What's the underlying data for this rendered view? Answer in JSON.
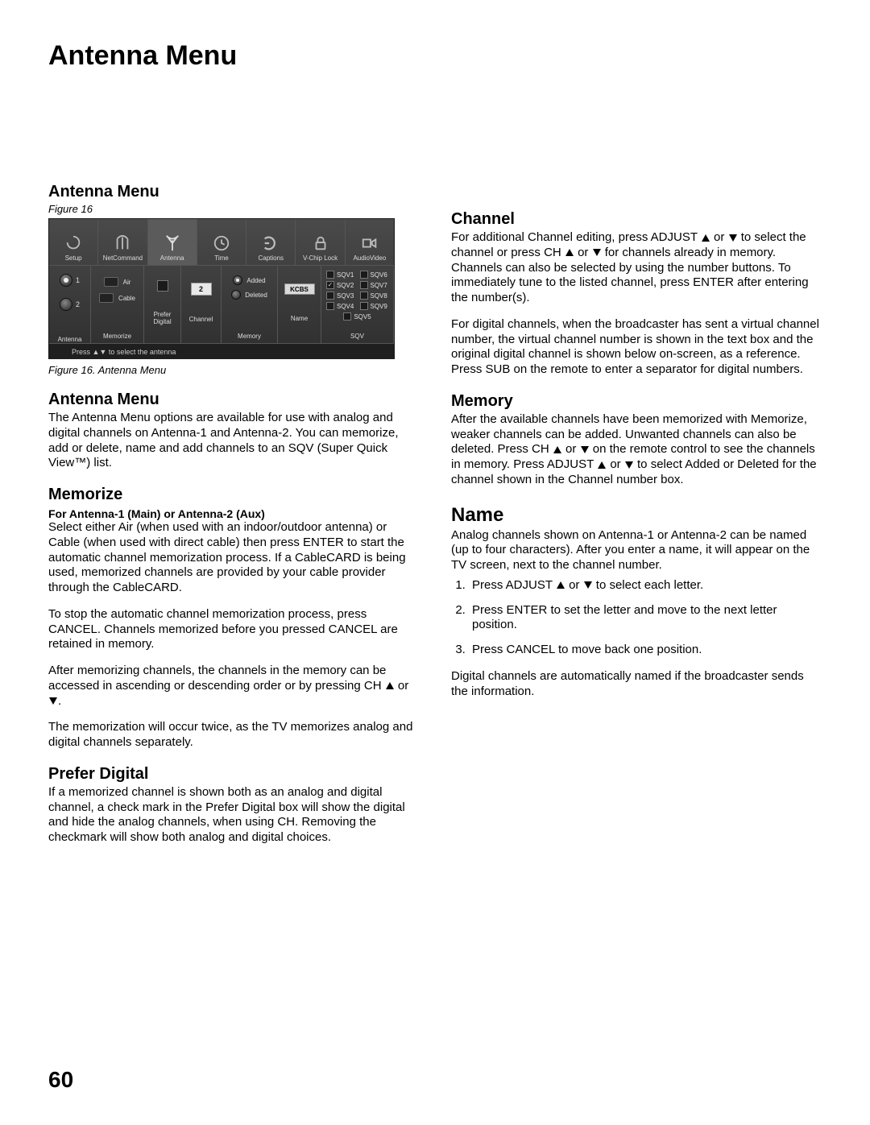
{
  "page": {
    "title": "Antenna Menu",
    "number": "60"
  },
  "left": {
    "h1": "Antenna Menu",
    "fig_ref": "Figure 16",
    "fig_caption": "Figure 16. Antenna Menu",
    "h2": "Antenna Menu",
    "p2": "The Antenna Menu options are available for use with analog and digital channels on Antenna-1 and Antenna-2.  You can memorize, add or delete, name and add channels to an SQV (Super Quick View™) list.",
    "h3": "Memorize",
    "sub3": "For Antenna-1 (Main) or Antenna-2 (Aux)",
    "p3a": "Select either Air (when used with an indoor/outdoor antenna) or Cable (when used with direct cable) then press ENTER to start the automatic channel memorization process.  If a CableCARD is being used, memorized channels are provided by your cable provider through the CableCARD.",
    "p3b": "To stop the automatic channel memorization process, press CANCEL.  Channels memorized before you pressed CANCEL are retained in memory.",
    "p3c_a": "After memorizing channels, the channels in the memory can be accessed in ascending or descending order or by pressing CH ",
    "p3c_b": " or ",
    "p3c_c": ".",
    "p3d": "The memorization will occur twice, as the TV memorizes analog and digital channels separately.",
    "h4": "Prefer Digital",
    "p4": "If a memorized channel is shown both as an analog and digital channel, a check mark in the Prefer Digital box will show the digital and hide the analog channels, when using CH.  Removing the checkmark will show both analog and digital choices."
  },
  "right": {
    "h1": "Channel",
    "p1a_a": "For additional Channel editing, press ADJUST ",
    "p1a_b": " or ",
    "p1a_c": " to select the channel or press CH ",
    "p1a_d": " or ",
    "p1a_e": " for channels already in memory.  Channels can also be selected by using the number buttons.  To immediately tune to the listed channel, press ENTER after entering the number(s).",
    "p1b": "For digital channels, when the broadcaster has sent a virtual channel number, the virtual channel number is shown in the text box and the original digital channel is shown below on-screen, as a reference.  Press SUB on the remote to enter a separator for digital numbers.",
    "h2": "Memory",
    "p2_a": "After the available channels have been memorized with Memorize, weaker channels can be added.  Unwanted channels can also be deleted.  Press CH ",
    "p2_b": " or ",
    "p2_c": " on the remote control to see the channels in memory.  Press ADJUST ",
    "p2_d": " or ",
    "p2_e": " to select Added or Deleted for the channel shown in the Channel number box.",
    "h3": "Name",
    "p3": "Analog channels shown on Antenna-1 or Antenna-2 can be named (up to four characters).  After you enter a name, it will appear on the TV screen, next to the channel number.",
    "li1_a": "Press ADJUST  ",
    "li1_b": " or  ",
    "li1_c": " to select each letter.",
    "li2": "Press ENTER to set the letter and move to the next letter position.",
    "li3": "Press CANCEL to move back one position.",
    "p4": "Digital channels are automatically named if the broadcaster sends the information."
  },
  "osd": {
    "top": [
      "Setup",
      "NetCommand",
      "Antenna",
      "Time",
      "Captions",
      "V-Chip Lock",
      "AudioVideo"
    ],
    "bottom_labels": {
      "antenna": "Antenna",
      "memorize": "Memorize",
      "prefer": "Prefer\nDigital",
      "channel": "Channel",
      "memory": "Memory",
      "name": "Name",
      "sqv": "SQV"
    },
    "ant1": "1",
    "ant2": "2",
    "air": "Air",
    "cable": "Cable",
    "ch_value": "2",
    "added": "Added",
    "deleted": "Deleted",
    "name_value": "KCBS",
    "sqv_items": [
      "SQV1",
      "SQV2",
      "SQV3",
      "SQV4",
      "SQV5",
      "SQV6",
      "SQV7",
      "SQV8",
      "SQV9"
    ],
    "sqv_checked": [
      false,
      true,
      false,
      false,
      false,
      false,
      false,
      false,
      false
    ],
    "help": "Press ▲▼ to select the antenna"
  },
  "style": {
    "page_bg": "#ffffff",
    "text_color": "#000000",
    "title_fontsize": 34,
    "heading_fontsize": 20,
    "heading_large_fontsize": 24,
    "body_fontsize": 15,
    "caption_fontsize": 13,
    "pagenum_fontsize": 28,
    "osd_bg_top": "#4a4a4a",
    "osd_bg_bottom": "#2e2e2e",
    "osd_border": "#555555",
    "osd_text": "#e0e0e0"
  }
}
